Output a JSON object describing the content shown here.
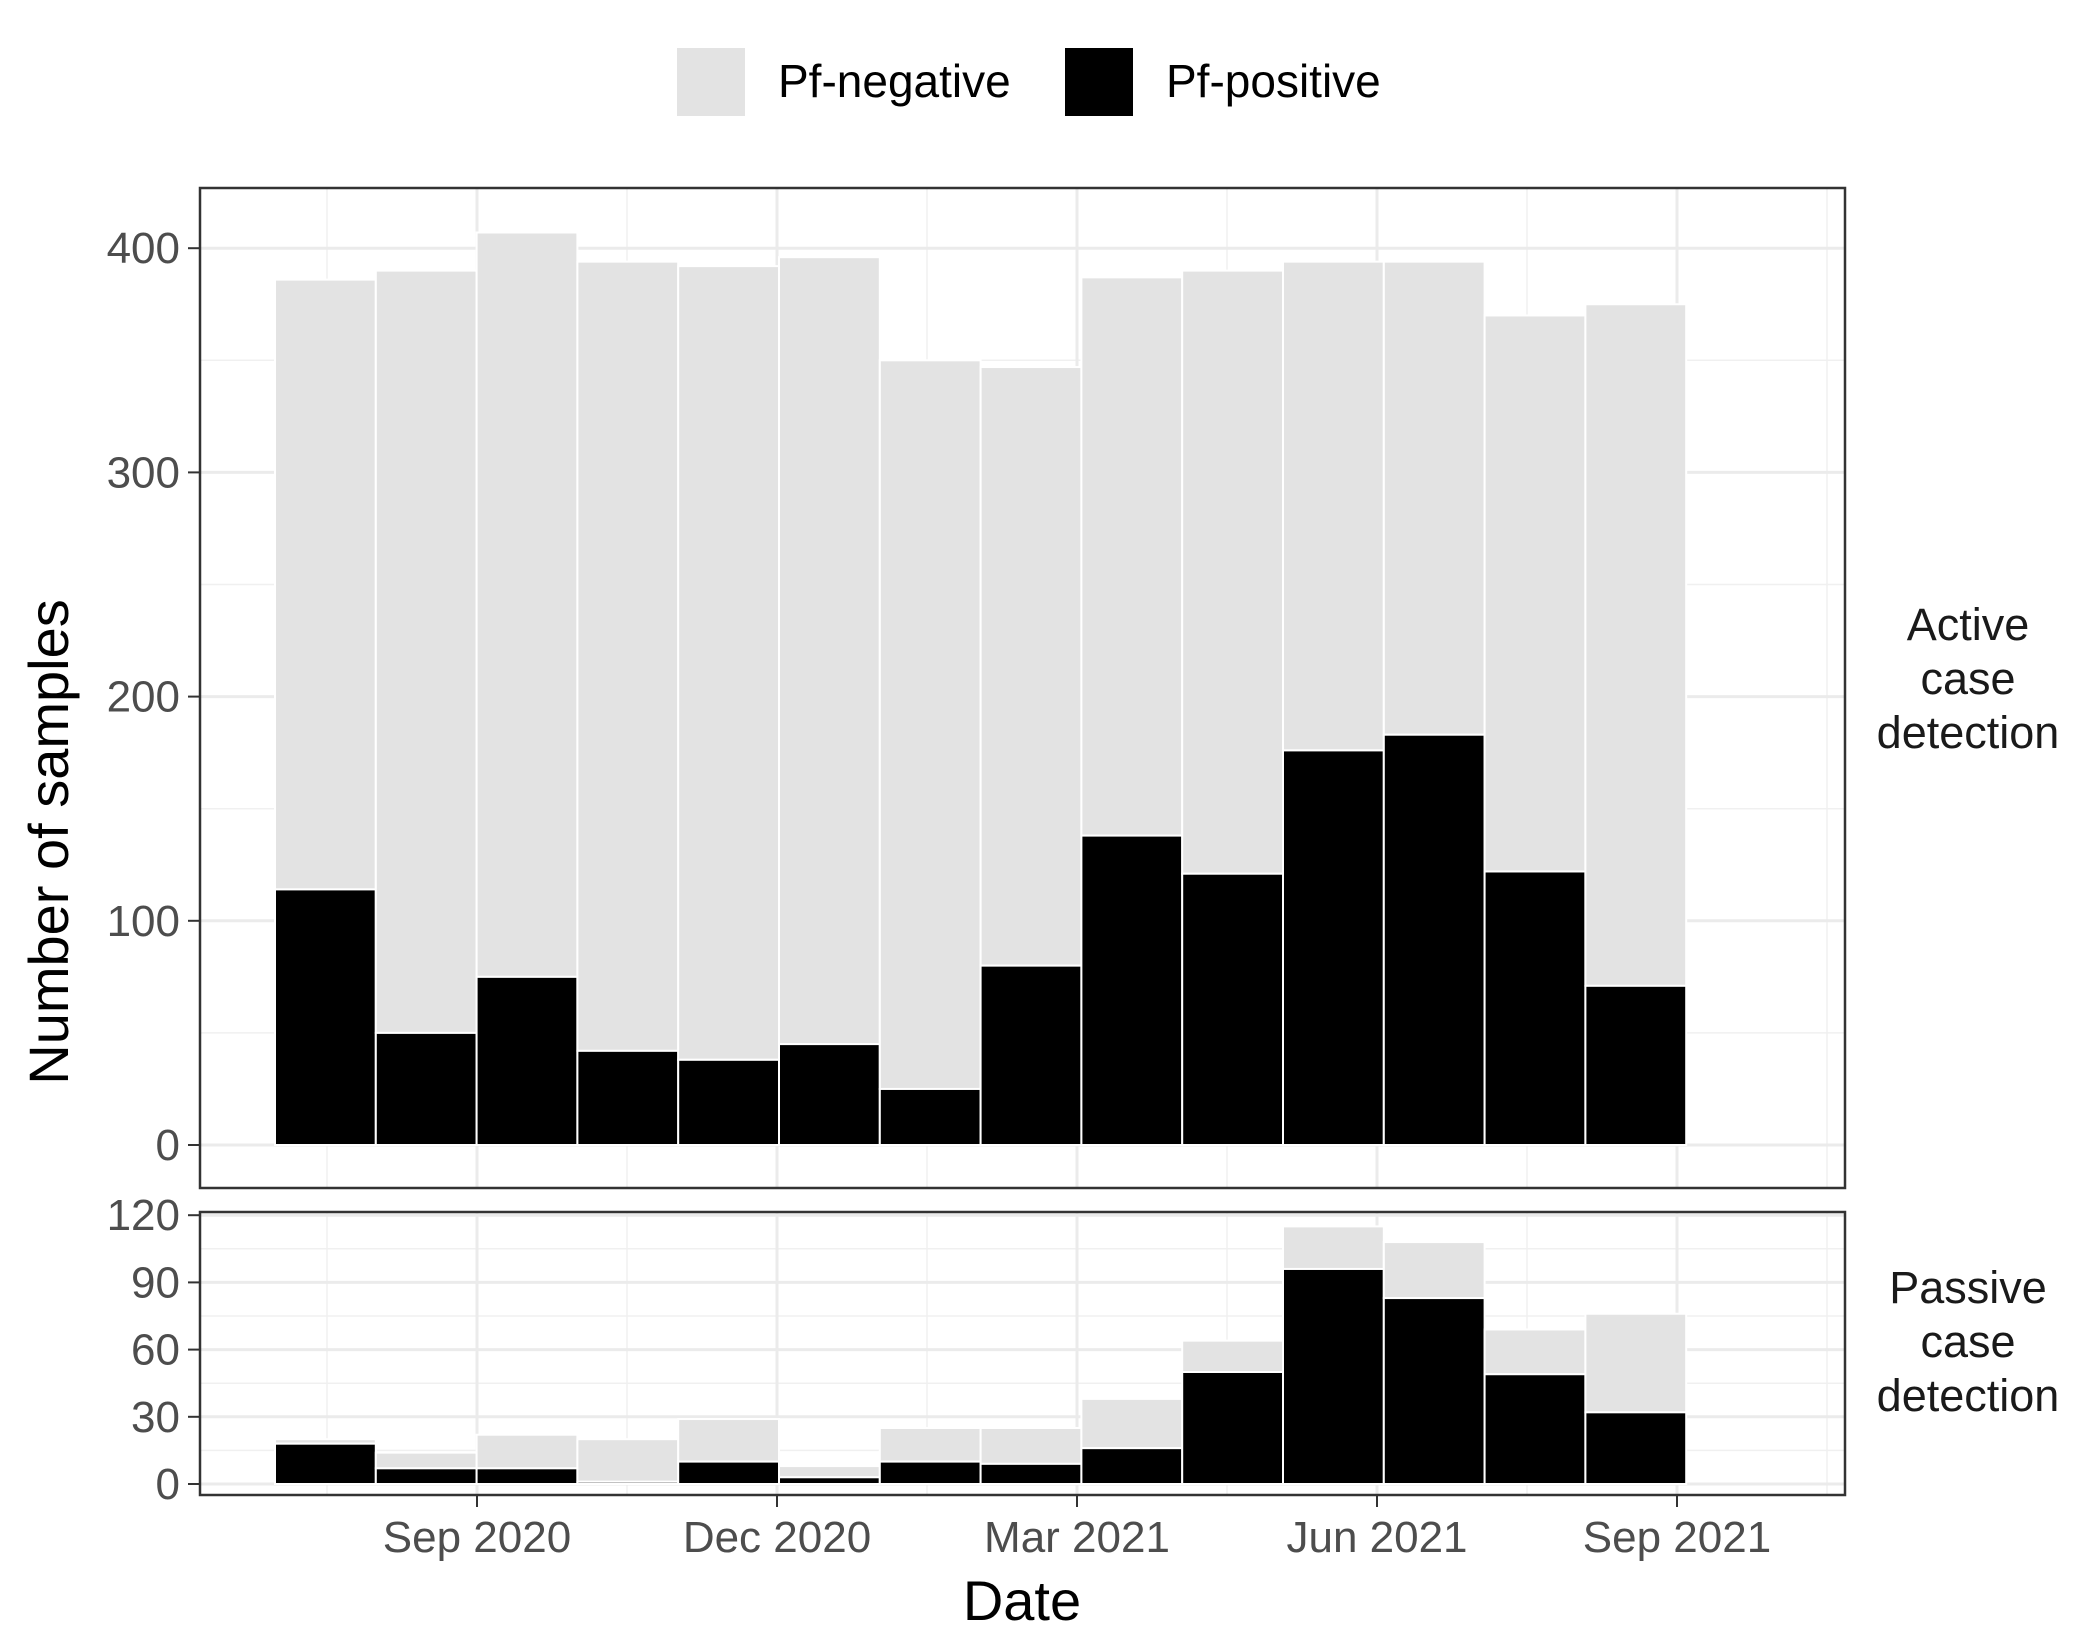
{
  "chart_data": {
    "type": "bar",
    "stacked": true,
    "xlabel": "Date",
    "ylabel": "Number of samples",
    "x_tick_labels": [
      "Sep 2020",
      "Dec 2020",
      "Mar 2021",
      "Jun 2021",
      "Sep 2021"
    ],
    "legend": {
      "position": "top",
      "entries": [
        {
          "label": "Pf-negative",
          "color": "#e3e3e3"
        },
        {
          "label": "Pf-positive",
          "color": "#000000"
        }
      ]
    },
    "periods": [
      "Jul 2020",
      "Aug 2020",
      "Sep 2020",
      "Oct 2020",
      "Nov 2020",
      "Dec 2020",
      "Jan 2021",
      "Feb 2021",
      "Mar 2021",
      "Apr 2021",
      "May 2021",
      "Jun 2021",
      "Jul 2021",
      "Aug 2021"
    ],
    "panels": [
      {
        "strip_lines": [
          "Active",
          "case",
          "detection"
        ],
        "ylim": [
          0,
          428
        ],
        "yticks": [
          0,
          100,
          200,
          300,
          400
        ],
        "y_tick_labels": [
          "0",
          "100",
          "200",
          "300",
          "400"
        ],
        "totals": [
          386,
          390,
          407,
          394,
          392,
          396,
          350,
          347,
          387,
          390,
          394,
          394,
          370,
          375
        ],
        "positive": [
          114,
          50,
          75,
          42,
          38,
          45,
          25,
          80,
          138,
          121,
          176,
          183,
          122,
          71
        ]
      },
      {
        "strip_lines": [
          "Passive",
          "case",
          "detection"
        ],
        "ylim": [
          0,
          122
        ],
        "yticks": [
          0,
          30,
          60,
          90,
          120
        ],
        "y_tick_labels": [
          "0",
          "30",
          "60",
          "90",
          "120"
        ],
        "totals": [
          20,
          14,
          22,
          20,
          29,
          8,
          25,
          25,
          38,
          64,
          115,
          108,
          69,
          76
        ],
        "positive": [
          18,
          7,
          7,
          1,
          10,
          3,
          10,
          9,
          16,
          50,
          96,
          83,
          49,
          32
        ]
      }
    ]
  }
}
